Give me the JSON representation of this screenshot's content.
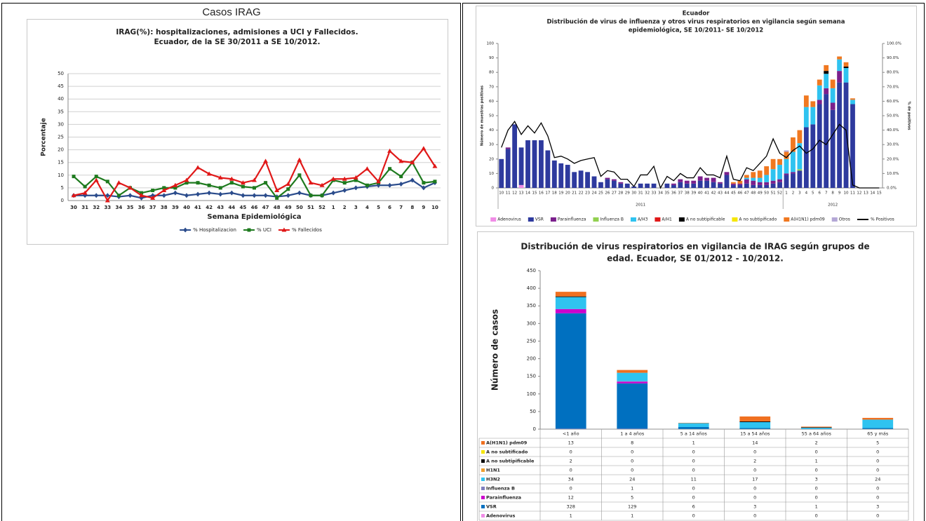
{
  "header": {
    "title": "Casos IRAG"
  },
  "chart_data": [
    {
      "type": "line",
      "title": [
        "IRAG(%): hospitalizaciones, admisiones a UCI y Fallecidos.",
        "Ecuador, de la SE 30/2011 a SE 10/2012."
      ],
      "xlabel": "Semana Epidemiológica",
      "ylabel": "Porcentaje",
      "categories": [
        "30",
        "31",
        "32",
        "33",
        "34",
        "35",
        "36",
        "37",
        "38",
        "39",
        "40",
        "41",
        "42",
        "43",
        "44",
        "45",
        "46",
        "47",
        "48",
        "49",
        "50",
        "51",
        "52",
        "1",
        "2",
        "3",
        "4",
        "5",
        "6",
        "7",
        "8",
        "9",
        "10"
      ],
      "series": [
        {
          "name": "% Hospitalizacion",
          "color": "#2b4c8c",
          "marker": "diamond",
          "values": [
            2,
            2,
            2,
            2,
            1.5,
            2,
            1,
            2,
            2,
            3,
            2,
            2.5,
            3,
            2.5,
            3,
            2,
            2,
            2,
            1.5,
            2,
            3,
            2,
            2,
            3,
            4,
            5,
            5.5,
            6,
            6,
            6.5,
            8,
            5,
            7
          ]
        },
        {
          "name": "% UCI",
          "color": "#1e7a1e",
          "marker": "square",
          "values": [
            9.5,
            5.5,
            9.5,
            7.5,
            2,
            5,
            3,
            4,
            5,
            5,
            7,
            7,
            6,
            5,
            7,
            5.5,
            5,
            7,
            1,
            4.5,
            10,
            2,
            2,
            8,
            7,
            8,
            6,
            7,
            12.5,
            9.5,
            15,
            7,
            7.5
          ]
        },
        {
          "name": "% Fallecidos",
          "color": "#e01818",
          "marker": "triangle",
          "values": [
            2,
            3,
            8,
            0,
            7,
            5,
            2,
            1,
            4,
            6,
            8,
            13,
            10.5,
            9,
            8.5,
            7,
            8,
            15.5,
            4,
            6.5,
            16,
            7,
            6,
            8.5,
            8.5,
            9,
            12.5,
            7.5,
            19.5,
            15.5,
            15,
            20.5,
            13.5
          ]
        }
      ],
      "ylim": [
        0,
        50
      ],
      "yticks": [
        0,
        5,
        10,
        15,
        20,
        25,
        30,
        35,
        40,
        45,
        50
      ],
      "grid": true,
      "legend": "bottom"
    },
    {
      "type": "bar",
      "stacked": true,
      "title": [
        "Ecuador",
        "Distribución de virus de influenza y otros virus respiratorios en vigilancia según semana",
        "epidemiológica, SE 10/2011- SE 10/2012"
      ],
      "ylabel": "Número de muestras positivas",
      "y2label": "% de positivos",
      "categories": [
        "10",
        "11",
        "12",
        "13",
        "14",
        "15",
        "16",
        "17",
        "18",
        "19",
        "20",
        "21",
        "22",
        "23",
        "24",
        "25",
        "26",
        "27",
        "28",
        "29",
        "30",
        "31",
        "32",
        "33",
        "34",
        "35",
        "36",
        "37",
        "38",
        "39",
        "40",
        "41",
        "42",
        "43",
        "44",
        "45",
        "46",
        "47",
        "48",
        "49",
        "50",
        "51",
        "52",
        "1",
        "2",
        "3",
        "4",
        "5",
        "6",
        "7",
        "8",
        "9",
        "10",
        "11",
        "12",
        "13",
        "14",
        "15"
      ],
      "x_groups": [
        "2011",
        "2012"
      ],
      "series": [
        {
          "name": "Adenovirus",
          "color": "#f08ce6",
          "values": [
            0,
            0,
            0,
            2,
            0,
            0,
            0,
            0,
            0,
            0,
            0,
            0,
            0,
            0,
            0,
            0,
            0,
            0,
            0,
            0,
            0,
            0,
            0,
            0,
            0,
            0,
            0,
            0,
            0,
            0,
            0,
            0,
            0,
            0,
            0,
            0,
            0,
            0,
            0,
            0,
            0,
            0,
            0,
            0,
            0,
            0,
            0,
            0,
            0,
            0,
            0,
            0,
            0,
            0,
            0,
            0,
            0,
            0
          ]
        },
        {
          "name": "VSR",
          "color": "#2e3a9e",
          "values": [
            20,
            27,
            44,
            26,
            33,
            33,
            33,
            26,
            19,
            17,
            16,
            11,
            12,
            11,
            8,
            4,
            6,
            5,
            3,
            3,
            1,
            3,
            3,
            3,
            0,
            3,
            2,
            4,
            3,
            3,
            5,
            5,
            4,
            3,
            9,
            2,
            2,
            3,
            2,
            2,
            2,
            3,
            4,
            9,
            10,
            12,
            42,
            44,
            58,
            65,
            54,
            73,
            73,
            58,
            0,
            0,
            0,
            0
          ]
        },
        {
          "name": "Parainfluenza",
          "color": "#7a1f8c",
          "values": [
            0,
            1,
            0,
            0,
            0,
            0,
            0,
            0,
            0,
            0,
            0,
            0,
            0,
            0,
            0,
            0,
            1,
            1,
            1,
            0,
            0,
            0,
            0,
            0,
            0,
            0,
            1,
            2,
            2,
            2,
            3,
            2,
            3,
            1,
            2,
            1,
            1,
            3,
            3,
            2,
            2,
            2,
            2,
            1,
            1,
            0,
            0,
            0,
            3,
            4,
            5,
            8,
            0,
            0,
            0,
            0,
            0,
            0
          ]
        },
        {
          "name": "Influenza  B",
          "color": "#92d050",
          "values": [
            0,
            0,
            0,
            0,
            0,
            0,
            0,
            0,
            0,
            0,
            0,
            0,
            0,
            0,
            0,
            0,
            0,
            0,
            0,
            0,
            0,
            0,
            0,
            0,
            0,
            0,
            0,
            0,
            0,
            0,
            0,
            0,
            0,
            0,
            0,
            0,
            0,
            0,
            0,
            0,
            0,
            0,
            0,
            0,
            0,
            1,
            0,
            0,
            0,
            0,
            0,
            0,
            0,
            0,
            0,
            0,
            0,
            0
          ]
        },
        {
          "name": "A/H3",
          "color": "#2fc3f0",
          "values": [
            0,
            0,
            0,
            0,
            0,
            0,
            0,
            0,
            0,
            0,
            0,
            0,
            0,
            0,
            0,
            0,
            0,
            0,
            0,
            0,
            0,
            0,
            0,
            0,
            0,
            0,
            0,
            0,
            0,
            0,
            0,
            0,
            0,
            0,
            0,
            0,
            0,
            1,
            2,
            3,
            5,
            8,
            10,
            10,
            14,
            18,
            14,
            12,
            10,
            10,
            10,
            8,
            10,
            3,
            0,
            0,
            0,
            0
          ]
        },
        {
          "name": "A/H1",
          "color": "#e01818",
          "values": [
            0,
            0,
            0,
            0,
            0,
            0,
            0,
            0,
            0,
            0,
            0,
            0,
            0,
            0,
            0,
            0,
            0,
            0,
            0,
            0,
            0,
            0,
            0,
            0,
            0,
            0,
            0,
            0,
            0,
            0,
            0,
            0,
            0,
            0,
            0,
            0,
            0,
            0,
            0,
            0,
            0,
            0,
            0,
            0,
            0,
            0,
            0,
            0,
            0,
            0,
            0,
            0,
            0,
            0,
            0,
            0,
            0,
            0
          ]
        },
        {
          "name": "A no subtipificable",
          "color": "#000000",
          "values": [
            0,
            0,
            0,
            0,
            0,
            0,
            0,
            0,
            0,
            0,
            0,
            0,
            0,
            0,
            0,
            0,
            0,
            0,
            0,
            0,
            0,
            0,
            0,
            0,
            0,
            0,
            0,
            0,
            0,
            0,
            0,
            0,
            0,
            0,
            0,
            0,
            0,
            0,
            0,
            0,
            0,
            0,
            0,
            0,
            0,
            0,
            0,
            0,
            0,
            2,
            0,
            0,
            1,
            0,
            0,
            0,
            0,
            0
          ]
        },
        {
          "name": "A no subtipificado",
          "color": "#f5e600",
          "values": [
            0,
            0,
            0,
            0,
            0,
            0,
            0,
            0,
            0,
            0,
            0,
            0,
            0,
            0,
            0,
            0,
            0,
            0,
            0,
            0,
            0,
            0,
            0,
            0,
            0,
            0,
            0,
            0,
            0,
            0,
            0,
            0,
            0,
            0,
            0,
            0,
            0,
            0,
            0,
            0,
            0,
            0,
            0,
            0,
            0,
            0,
            0,
            0,
            0,
            0,
            0,
            0,
            0,
            0,
            0,
            0,
            0,
            0
          ]
        },
        {
          "name": "A(H1N1) pdm09",
          "color": "#f07820",
          "values": [
            0,
            0,
            0,
            0,
            0,
            0,
            0,
            0,
            0,
            0,
            0,
            0,
            0,
            0,
            0,
            0,
            0,
            0,
            0,
            0,
            0,
            0,
            0,
            0,
            0,
            0,
            0,
            0,
            0,
            0,
            0,
            0,
            0,
            0,
            0,
            1,
            2,
            2,
            4,
            5,
            6,
            7,
            4,
            5,
            10,
            9,
            8,
            4,
            4,
            4,
            6,
            2,
            3,
            1,
            0,
            0,
            0,
            0
          ]
        },
        {
          "name": "Otros",
          "color": "#b4a7d6",
          "values": [
            0,
            0,
            0,
            0,
            0,
            0,
            0,
            0,
            0,
            0,
            0,
            0,
            0,
            0,
            0,
            0,
            0,
            0,
            0,
            0,
            0,
            0,
            0,
            0,
            0,
            0,
            0,
            0,
            0,
            0,
            0,
            0,
            0,
            0,
            0,
            0,
            0,
            0,
            0,
            0,
            0,
            0,
            0,
            1,
            0,
            0,
            0,
            0,
            0,
            0,
            0,
            0,
            0,
            0,
            0,
            0,
            0,
            0
          ]
        },
        {
          "name": "% Positivos",
          "color": "#000000",
          "type": "line",
          "axis": "y2",
          "values": [
            28,
            40,
            46,
            37,
            43,
            38,
            45,
            36,
            21,
            22,
            20,
            17,
            19,
            20,
            21,
            8,
            12,
            11,
            6,
            6,
            1,
            9,
            9,
            15,
            0,
            8,
            5,
            10,
            7,
            7,
            14,
            9,
            9,
            7,
            22,
            6,
            5,
            14,
            12,
            17,
            22,
            34,
            24,
            21,
            26,
            29,
            24,
            27,
            33,
            30,
            37,
            44,
            40,
            2,
            0,
            0,
            0,
            0
          ]
        }
      ],
      "ylim": [
        0,
        100
      ],
      "yticks": [
        0,
        10,
        20,
        30,
        40,
        50,
        60,
        70,
        80,
        90,
        100
      ],
      "y2lim": [
        0,
        100
      ],
      "y2ticks": [
        {
          "value": 0,
          "label": "0.0%"
        },
        {
          "value": 10,
          "label": "10.0%"
        },
        {
          "value": 20,
          "label": "20.0%"
        },
        {
          "value": 30,
          "label": "30.0%"
        },
        {
          "value": 40,
          "label": "40.0%"
        },
        {
          "value": 50,
          "label": "50.0%"
        },
        {
          "value": 60,
          "label": "60.0%"
        },
        {
          "value": 70,
          "label": "70.0%"
        },
        {
          "value": 80,
          "label": "80.0%"
        },
        {
          "value": 90,
          "label": "90.0%"
        },
        {
          "value": 100,
          "label": "100.0%"
        }
      ],
      "grid": false,
      "legend": "bottom"
    },
    {
      "type": "bar",
      "stacked": true,
      "table": true,
      "title": [
        "Distribución de virus respiratorios en vigilancia de IRAG según grupos de",
        "edad. Ecuador, SE 01/2012 - 10/2012."
      ],
      "ylabel": "Número de casos",
      "categories": [
        "<1 año",
        "1 a 4 años",
        "5 a 14 años",
        "15 a 54 años",
        "55 a 64 años",
        "65 y más"
      ],
      "series": [
        {
          "name": "Adenovirus",
          "color": "#f08ce6",
          "values": [
            1,
            1,
            0,
            0,
            0,
            0
          ]
        },
        {
          "name": "VSR",
          "color": "#0070c0",
          "values": [
            328,
            129,
            6,
            3,
            1,
            3
          ]
        },
        {
          "name": "Parainfluenza",
          "color": "#cc00cc",
          "values": [
            12,
            5,
            0,
            0,
            0,
            0
          ]
        },
        {
          "name": "Influenza  B",
          "color": "#7f7fbf",
          "values": [
            0,
            1,
            0,
            0,
            0,
            0
          ]
        },
        {
          "name": "H3N2",
          "color": "#2fc3f0",
          "values": [
            34,
            24,
            11,
            17,
            3,
            24
          ]
        },
        {
          "name": "H1N1",
          "color": "#f0a030",
          "values": [
            0,
            0,
            0,
            0,
            0,
            0
          ]
        },
        {
          "name": "A no subtipificable",
          "color": "#000000",
          "values": [
            2,
            0,
            0,
            2,
            1,
            0
          ]
        },
        {
          "name": "A no subtificado",
          "color": "#f5e600",
          "values": [
            0,
            0,
            0,
            0,
            0,
            0
          ]
        },
        {
          "name": "A(H1N1) pdm09",
          "color": "#f07020",
          "values": [
            13,
            8,
            1,
            14,
            2,
            5
          ]
        }
      ],
      "ylim": [
        0,
        450
      ],
      "yticks": [
        0,
        50,
        100,
        150,
        200,
        250,
        300,
        350,
        400,
        450
      ],
      "grid": false
    }
  ]
}
